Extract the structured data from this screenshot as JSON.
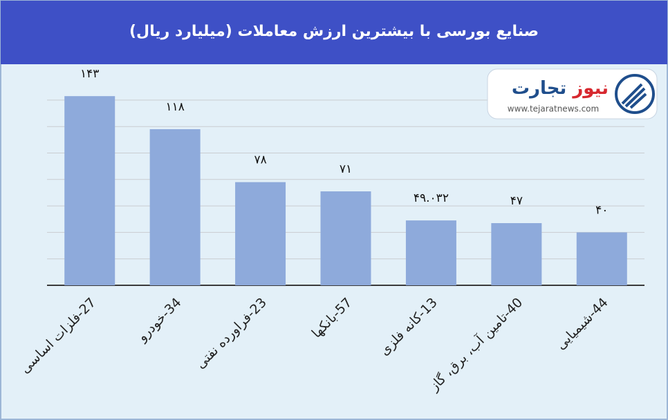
{
  "chart_data": {
    "type": "bar",
    "title": "صنایع بورسی با بیشترین ارزش معاملات  (میلیارد ریال)",
    "categories": [
      "27-فلزات اساسی",
      "34-خودرو",
      "23-فراورده نفتی",
      "57-بانکها",
      "13-کانه فلزی",
      "40-تامین آب، برق، گاز",
      "44-شیمیایی"
    ],
    "values": [
      143,
      118,
      78,
      71,
      49.032,
      47,
      40
    ],
    "value_labels": [
      "۱۴۳",
      "۱۱۸",
      "۷۸",
      "۷۱",
      "۴۹.۰۳۲",
      "۴۷",
      "۴۰"
    ],
    "color": "#8eaadb",
    "ylim": [
      0,
      160
    ],
    "yticks": [
      0,
      20,
      40,
      60,
      80,
      100,
      120,
      140
    ],
    "grid": true
  },
  "logo": {
    "name": "تجارت",
    "accent": "نیوز",
    "url": "www.tejaratnews.com"
  }
}
